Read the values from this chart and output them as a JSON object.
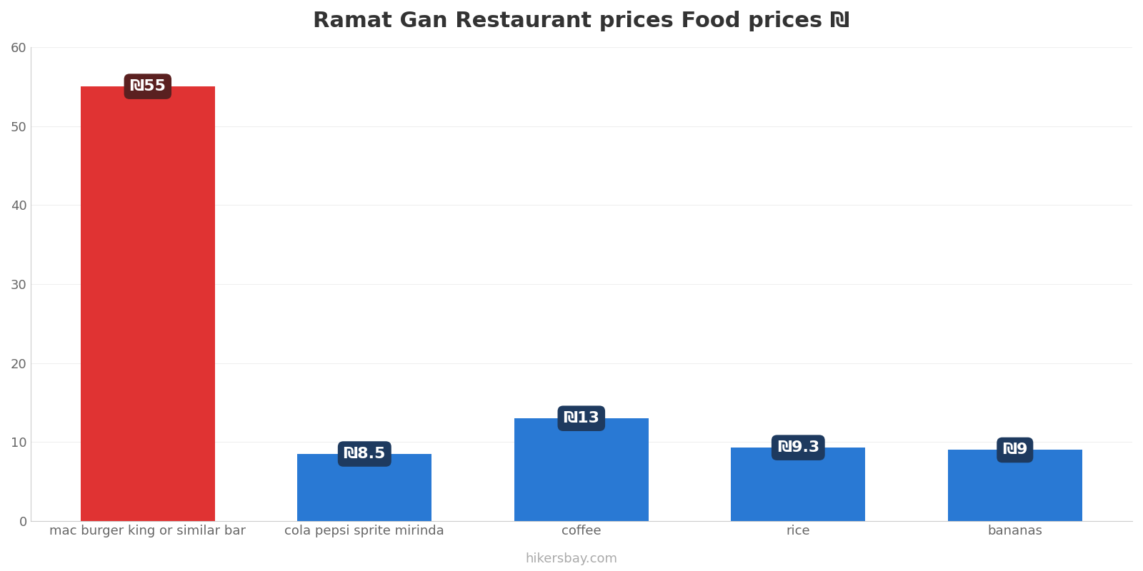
{
  "title": "Ramat Gan Restaurant prices Food prices ₪",
  "categories": [
    "mac burger king or similar bar",
    "cola pepsi sprite mirinda",
    "coffee",
    "rice",
    "bananas"
  ],
  "values": [
    55,
    8.5,
    13,
    9.3,
    9
  ],
  "bar_colors": [
    "#e03333",
    "#2979d4",
    "#2979d4",
    "#2979d4",
    "#2979d4"
  ],
  "label_texts": [
    "₪55",
    "₪8.5",
    "₪13",
    "₪9.3",
    "₪9"
  ],
  "label_bg_colors_red": "#5a2020",
  "label_bg_colors_blue": "#1e3a5f",
  "ylim": [
    0,
    60
  ],
  "yticks": [
    0,
    10,
    20,
    30,
    40,
    50,
    60
  ],
  "background_color": "#ffffff",
  "grid_color": "#efefef",
  "watermark": "hikersbay.com",
  "title_fontsize": 22,
  "tick_fontsize": 13,
  "label_fontsize": 16,
  "bar_width": 0.62
}
